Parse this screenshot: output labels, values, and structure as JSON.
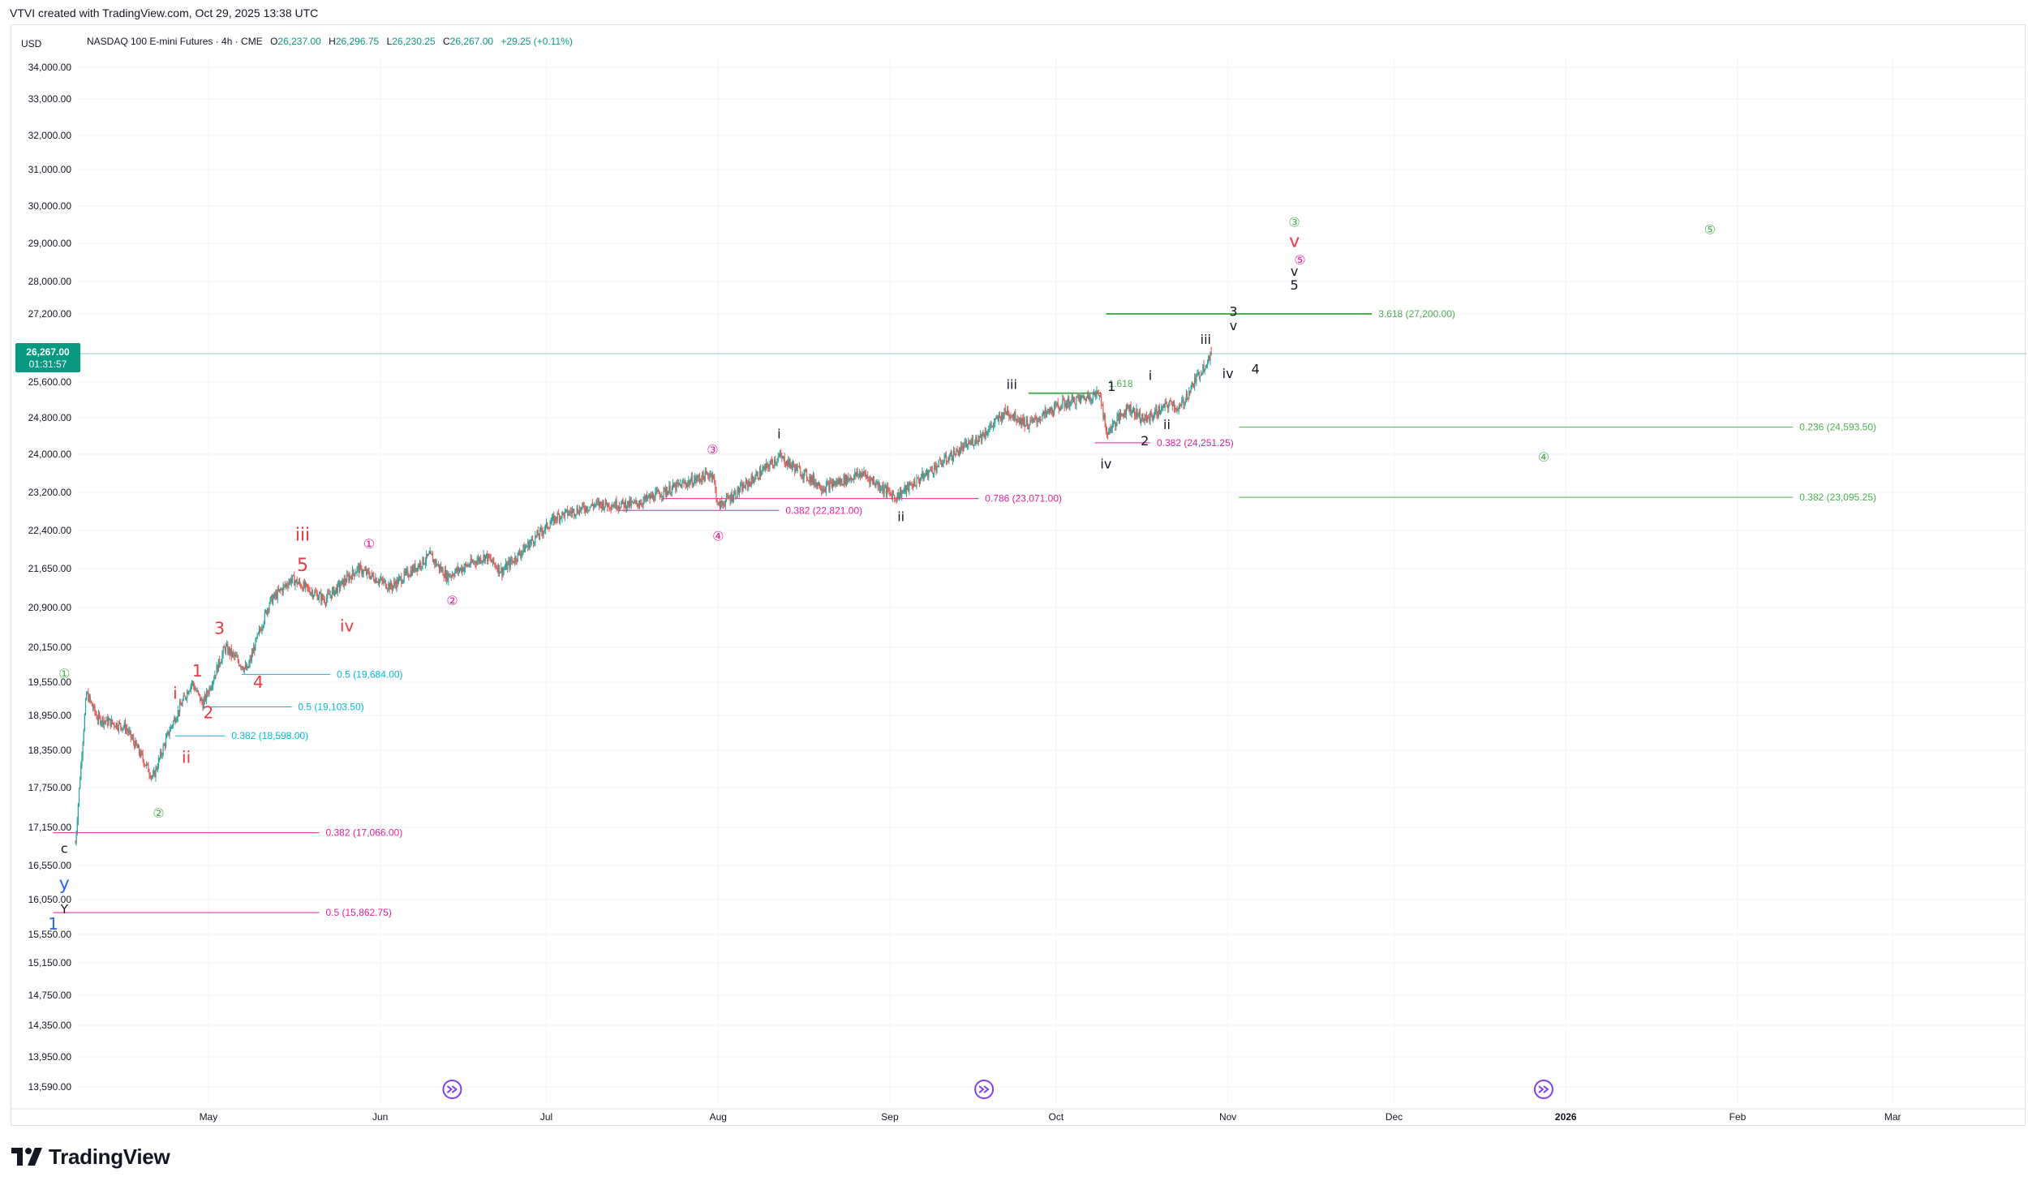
{
  "header": {
    "title": "VTVI created with TradingView.com, Oct 29, 2025 13:38 UTC"
  },
  "footer": {
    "brand": "TradingView",
    "logo_text": "17"
  },
  "legend": {
    "currency": "USD",
    "symbol": "NASDAQ 100 E-mini Futures · 4h · CME",
    "o_label": "O",
    "o_value": "26,237.00",
    "h_label": "H",
    "h_value": "26,296.75",
    "l_label": "L",
    "l_value": "26,230.25",
    "c_label": "C",
    "c_value": "26,267.00",
    "change": "+29.25 (+0.11%)"
  },
  "price_tag": {
    "price": "26,267.00",
    "countdown": "01:31:57"
  },
  "colors": {
    "up": "#26a69a",
    "down": "#ef5350",
    "red_wave": "#f23645",
    "magenta": "#e91e9b",
    "green": "#4caf50",
    "cyan": "#00bcd4",
    "black": "#131722",
    "blue": "#2962ff",
    "purple": "#7e3ff2",
    "price_tag_bg": "#089981"
  },
  "chart_data": {
    "type": "candlestick",
    "title": "NASDAQ 100 E-mini Futures · 4h · CME",
    "y_axis_ticks": [
      "34,000.00",
      "33,000.00",
      "32,000.00",
      "31,000.00",
      "30,000.00",
      "29,000.00",
      "28,000.00",
      "27,200.00",
      "25,600.00",
      "24,800.00",
      "24,000.00",
      "23,200.00",
      "22,400.00",
      "21,650.00",
      "20,900.00",
      "20,150.00",
      "19,550.00",
      "18,950.00",
      "18,350.00",
      "17,750.00",
      "17,150.00",
      "16,550.00",
      "16,050.00",
      "15,550.00",
      "15,150.00",
      "14,750.00",
      "14,350.00",
      "13,950.00",
      "13,590.00"
    ],
    "x_axis_ticks": [
      "May",
      "Jun",
      "Jul",
      "Aug",
      "Sep",
      "Oct",
      "Nov",
      "Dec",
      "2026",
      "Feb",
      "Mar"
    ],
    "x_range": [
      "2025-04-01",
      "2026-03-31"
    ],
    "last_price": 26267.0,
    "price_path": [
      {
        "date": "2025-04-07",
        "price": 16900
      },
      {
        "date": "2025-04-09",
        "price": 19350
      },
      {
        "date": "2025-04-11",
        "price": 18900
      },
      {
        "date": "2025-04-16",
        "price": 18750
      },
      {
        "date": "2025-04-21",
        "price": 17900
      },
      {
        "date": "2025-04-24",
        "price": 18700
      },
      {
        "date": "2025-04-28",
        "price": 19550
      },
      {
        "date": "2025-04-30",
        "price": 19150
      },
      {
        "date": "2025-05-04",
        "price": 20150
      },
      {
        "date": "2025-05-08",
        "price": 19750
      },
      {
        "date": "2025-05-12",
        "price": 21000
      },
      {
        "date": "2025-05-16",
        "price": 21450
      },
      {
        "date": "2025-05-22",
        "price": 21050
      },
      {
        "date": "2025-05-28",
        "price": 21650
      },
      {
        "date": "2025-06-03",
        "price": 21300
      },
      {
        "date": "2025-06-10",
        "price": 21900
      },
      {
        "date": "2025-06-13",
        "price": 21500
      },
      {
        "date": "2025-06-20",
        "price": 21900
      },
      {
        "date": "2025-06-23",
        "price": 21600
      },
      {
        "date": "2025-07-03",
        "price": 22700
      },
      {
        "date": "2025-07-10",
        "price": 22950
      },
      {
        "date": "2025-07-17",
        "price": 22950
      },
      {
        "date": "2025-07-24",
        "price": 23300
      },
      {
        "date": "2025-07-31",
        "price": 23600
      },
      {
        "date": "2025-08-01",
        "price": 22900
      },
      {
        "date": "2025-08-06",
        "price": 23350
      },
      {
        "date": "2025-08-12",
        "price": 23950
      },
      {
        "date": "2025-08-20",
        "price": 23300
      },
      {
        "date": "2025-08-27",
        "price": 23600
      },
      {
        "date": "2025-09-02",
        "price": 23100
      },
      {
        "date": "2025-09-10",
        "price": 23800
      },
      {
        "date": "2025-09-18",
        "price": 24450
      },
      {
        "date": "2025-09-22",
        "price": 24950
      },
      {
        "date": "2025-09-26",
        "price": 24650
      },
      {
        "date": "2025-10-02",
        "price": 25100
      },
      {
        "date": "2025-10-09",
        "price": 25350
      },
      {
        "date": "2025-10-10",
        "price": 24450
      },
      {
        "date": "2025-10-14",
        "price": 25050
      },
      {
        "date": "2025-10-17",
        "price": 24750
      },
      {
        "date": "2025-10-22",
        "price": 25150
      },
      {
        "date": "2025-10-23",
        "price": 24950
      },
      {
        "date": "2025-10-29",
        "price": 26267
      }
    ],
    "horizontal_levels": [
      {
        "label": "0.5 (15,862.75)",
        "price": 15862.75,
        "from": "2025-04-03",
        "to": "2025-05-21",
        "color": "magenta"
      },
      {
        "label": "0.382 (17,066.00)",
        "price": 17066.0,
        "from": "2025-04-03",
        "to": "2025-05-21",
        "color": "magenta"
      },
      {
        "label": "0.382 (18,598.00)",
        "price": 18598.0,
        "from": "2025-04-25",
        "to": "2025-05-04",
        "color": "cyan"
      },
      {
        "label": "0.5 (19,103.50)",
        "price": 19103.5,
        "from": "2025-04-30",
        "to": "2025-05-16",
        "color": "cyan"
      },
      {
        "label": "0.5 (19,684.00)",
        "price": 19684.0,
        "from": "2025-05-07",
        "to": "2025-05-23",
        "color": "cyan"
      },
      {
        "label": "0.382 (22,821.00)",
        "price": 22821.0,
        "from": "2025-07-14",
        "to": "2025-08-12",
        "color": "magenta"
      },
      {
        "label": "0.786 (23,071.00)",
        "price": 23071.0,
        "from": "2025-07-22",
        "to": "2025-09-17",
        "color": "magenta"
      },
      {
        "label": "0.382 (24,251.25)",
        "price": 24251.25,
        "from": "2025-10-08",
        "to": "2025-10-18",
        "color": "magenta"
      },
      {
        "label": "1.618",
        "price": 25350,
        "from": "2025-09-26",
        "to": "2025-10-09",
        "color": "green"
      },
      {
        "label": "3.618 (27,200.00)",
        "price": 27200.0,
        "from": "2025-10-10",
        "to": "2025-11-27",
        "color": "green"
      },
      {
        "label": "0.236 (24,593.50)",
        "price": 24593.5,
        "from": "2025-11-03",
        "to": "2026-02-11",
        "color": "green"
      },
      {
        "label": "0.382 (23,095.25)",
        "price": 23095.25,
        "from": "2025-11-03",
        "to": "2026-02-11",
        "color": "green"
      }
    ],
    "wave_labels": [
      {
        "text": "y",
        "date": "2025-04-05",
        "price": 16200,
        "color": "blue",
        "size": 22
      },
      {
        "text": "Y",
        "date": "2025-04-05",
        "price": 15850,
        "color": "black",
        "size": 15
      },
      {
        "text": "1",
        "date": "2025-04-03",
        "price": 15620,
        "color": "blue",
        "size": 20
      },
      {
        "text": "c",
        "date": "2025-04-05",
        "price": 16750,
        "color": "black",
        "size": 16
      },
      {
        "text": "①",
        "date": "2025-04-05",
        "price": 19620,
        "color": "green",
        "size": 16
      },
      {
        "text": "②",
        "date": "2025-04-22",
        "price": 17300,
        "color": "green",
        "size": 16
      },
      {
        "text": "i",
        "date": "2025-04-25",
        "price": 19250,
        "color": "red_wave",
        "size": 20
      },
      {
        "text": "ii",
        "date": "2025-04-27",
        "price": 18150,
        "color": "red_wave",
        "size": 20
      },
      {
        "text": "1",
        "date": "2025-04-29",
        "price": 19650,
        "color": "red_wave",
        "size": 20
      },
      {
        "text": "2",
        "date": "2025-05-01",
        "price": 18900,
        "color": "red_wave",
        "size": 20
      },
      {
        "text": "3",
        "date": "2025-05-03",
        "price": 20400,
        "color": "red_wave",
        "size": 20
      },
      {
        "text": "4",
        "date": "2025-05-10",
        "price": 19450,
        "color": "red_wave",
        "size": 20
      },
      {
        "text": "iii",
        "date": "2025-05-18",
        "price": 22200,
        "color": "red_wave",
        "size": 22
      },
      {
        "text": "5",
        "date": "2025-05-18",
        "price": 21600,
        "color": "red_wave",
        "size": 22
      },
      {
        "text": "iv",
        "date": "2025-05-26",
        "price": 20450,
        "color": "red_wave",
        "size": 20
      },
      {
        "text": "①",
        "date": "2025-05-30",
        "price": 22050,
        "color": "magenta",
        "size": 16
      },
      {
        "text": "②",
        "date": "2025-06-14",
        "price": 20950,
        "color": "magenta",
        "size": 16
      },
      {
        "text": "③",
        "date": "2025-07-31",
        "price": 24000,
        "color": "magenta",
        "size": 16
      },
      {
        "text": "④",
        "date": "2025-08-01",
        "price": 22200,
        "color": "magenta",
        "size": 16
      },
      {
        "text": "i",
        "date": "2025-08-12",
        "price": 24350,
        "color": "black",
        "size": 16
      },
      {
        "text": "ii",
        "date": "2025-09-03",
        "price": 22600,
        "color": "black",
        "size": 16
      },
      {
        "text": "iii",
        "date": "2025-09-23",
        "price": 25450,
        "color": "black",
        "size": 16
      },
      {
        "text": "iv",
        "date": "2025-10-10",
        "price": 23700,
        "color": "black",
        "size": 16
      },
      {
        "text": "1",
        "date": "2025-10-11",
        "price": 25400,
        "color": "black",
        "size": 16
      },
      {
        "text": "2",
        "date": "2025-10-17",
        "price": 24200,
        "color": "black",
        "size": 16
      },
      {
        "text": "i",
        "date": "2025-10-18",
        "price": 25650,
        "color": "black",
        "size": 16
      },
      {
        "text": "ii",
        "date": "2025-10-21",
        "price": 24550,
        "color": "black",
        "size": 16
      },
      {
        "text": "iii",
        "date": "2025-10-28",
        "price": 26500,
        "color": "black",
        "size": 16
      },
      {
        "text": "iv",
        "date": "2025-11-01",
        "price": 25700,
        "color": "black",
        "size": 16
      },
      {
        "text": "3",
        "date": "2025-11-02",
        "price": 27150,
        "color": "black",
        "size": 16
      },
      {
        "text": "v",
        "date": "2025-11-02",
        "price": 26820,
        "color": "black",
        "size": 16
      },
      {
        "text": "4",
        "date": "2025-11-06",
        "price": 25800,
        "color": "black",
        "size": 16
      },
      {
        "text": "5",
        "date": "2025-11-13",
        "price": 27800,
        "color": "black",
        "size": 16
      },
      {
        "text": "v",
        "date": "2025-11-13",
        "price": 28150,
        "color": "black",
        "size": 16
      },
      {
        "text": "⑤",
        "date": "2025-11-14",
        "price": 28450,
        "color": "magenta",
        "size": 16
      },
      {
        "text": "v",
        "date": "2025-11-13",
        "price": 28900,
        "color": "red_wave",
        "size": 22
      },
      {
        "text": "③",
        "date": "2025-11-13",
        "price": 29450,
        "color": "green",
        "size": 16
      },
      {
        "text": "④",
        "date": "2025-12-28",
        "price": 23850,
        "color": "green",
        "size": 16
      },
      {
        "text": "⑤",
        "date": "2026-01-27",
        "price": 29250,
        "color": "green",
        "size": 16
      }
    ],
    "event_markers": [
      {
        "date": "2025-06-14"
      },
      {
        "date": "2025-09-18"
      },
      {
        "date": "2025-12-28"
      }
    ]
  }
}
